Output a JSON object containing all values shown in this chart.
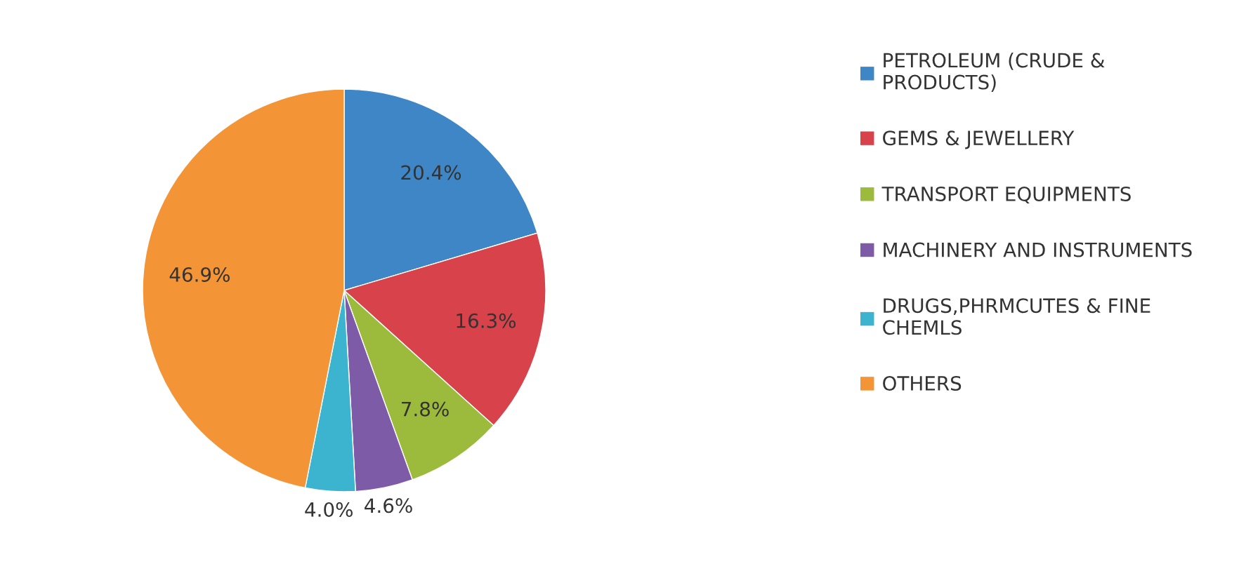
{
  "chart_data": {
    "type": "pie",
    "categories": [
      "PETROLEUM (CRUDE &\nPRODUCTS)",
      "GEMS & JEWELLERY",
      "TRANSPORT EQUIPMENTS",
      "MACHINERY AND INSTRUMENTS",
      "DRUGS,PHRMCUTES & FINE\nCHEMLS",
      "OTHERS"
    ],
    "values": [
      20.4,
      16.3,
      7.8,
      4.6,
      4.0,
      46.9
    ],
    "value_labels": [
      "20.4%",
      "16.3%",
      "7.8%",
      "4.6%",
      "4.0%",
      "46.9%"
    ],
    "colors": [
      "#3f86c7",
      "#d8434b",
      "#9cbb3c",
      "#7e5ba6",
      "#3cb3cf",
      "#f39437"
    ],
    "legend": "right"
  }
}
